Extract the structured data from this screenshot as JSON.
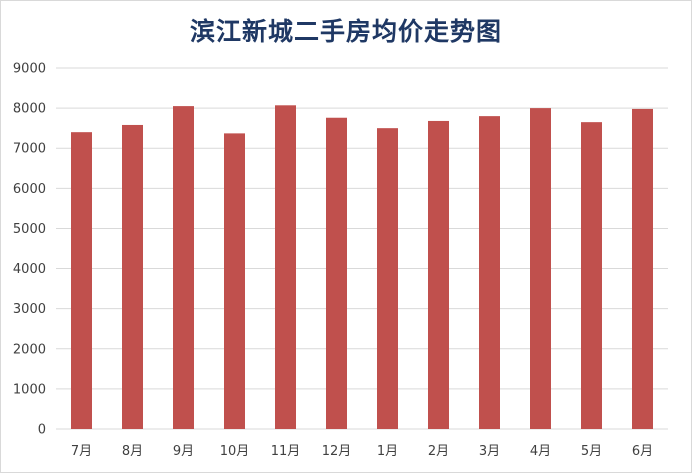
{
  "chart_data": {
    "type": "bar",
    "title": "滨江新城二手房均价走势图",
    "categories": [
      "7月",
      "8月",
      "9月",
      "10月",
      "11月",
      "12月",
      "1月",
      "2月",
      "3月",
      "4月",
      "5月",
      "6月"
    ],
    "values": [
      7400,
      7580,
      8050,
      7370,
      8070,
      7760,
      7500,
      7680,
      7800,
      8000,
      7650,
      7980
    ],
    "ylim": [
      0,
      9000
    ],
    "yticks": [
      0,
      1000,
      2000,
      3000,
      4000,
      5000,
      6000,
      7000,
      8000,
      9000
    ],
    "xlabel": "",
    "ylabel": "",
    "grid": true,
    "legend": "none",
    "bar_color": "#c0504d",
    "grid_color": "#d9d9d9",
    "title_color": "#1f3864"
  }
}
